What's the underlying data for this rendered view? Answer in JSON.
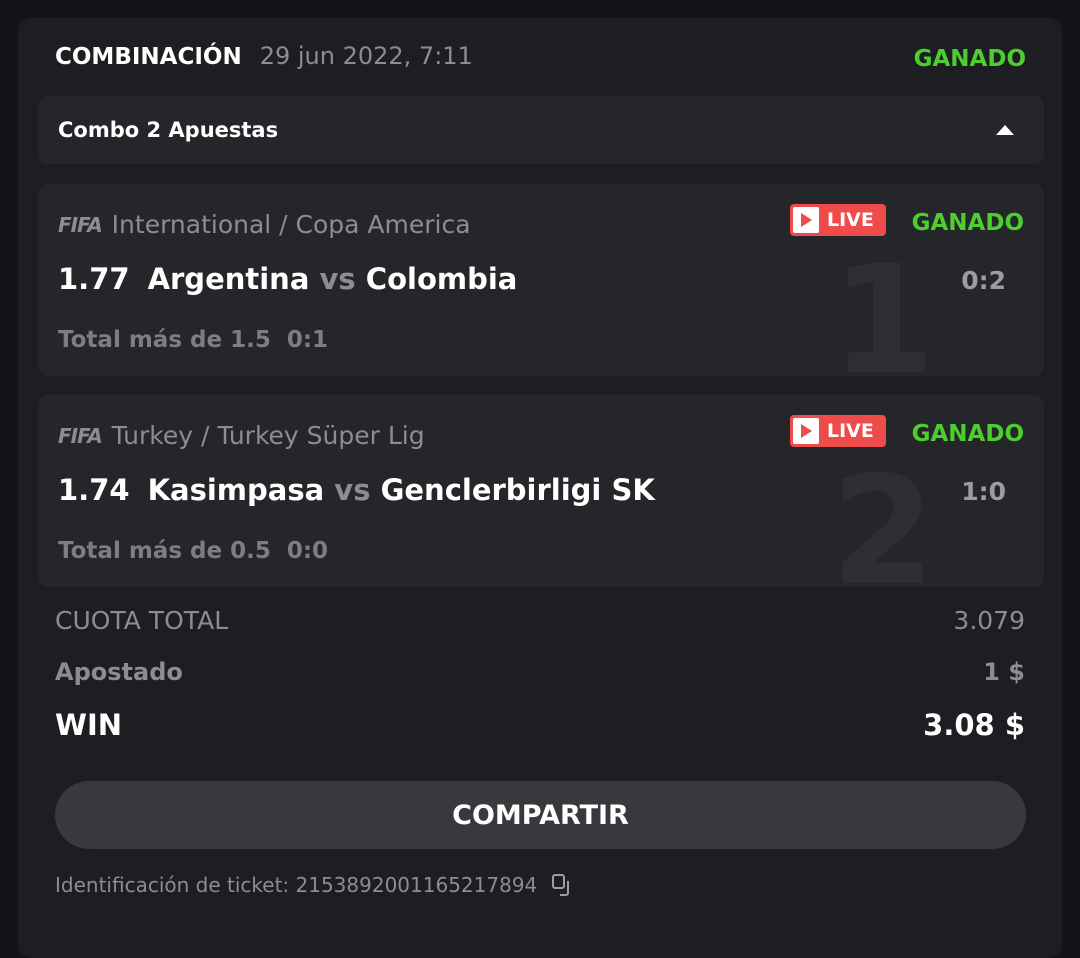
{
  "header": {
    "title": "COMBINACIÓN",
    "date": "29 jun 2022, 7:11",
    "status": "GANADO"
  },
  "combo": {
    "label": "Combo 2 Apuestas",
    "icon": "caret-up-icon"
  },
  "bets": [
    {
      "index": "1",
      "sport_logo": "FIFA",
      "league": "International / Copa America",
      "live": "LIVE",
      "status": "GANADO",
      "odd": "1.77",
      "home": "Argentina",
      "vs": "vs",
      "away": "Colombia",
      "score": "0:2",
      "market": "Total más de 1.5",
      "market_score": "0:1"
    },
    {
      "index": "2",
      "sport_logo": "FIFA",
      "league": "Turkey / Turkey Süper Lig",
      "live": "LIVE",
      "status": "GANADO",
      "odd": "1.74",
      "home": "Kasimpasa",
      "vs": "vs",
      "away": "Genclerbirligi SK",
      "score": "1:0",
      "market": "Total más de 0.5",
      "market_score": "0:0"
    }
  ],
  "summary": {
    "total_odds_label": "CUOTA TOTAL",
    "total_odds": "3.079",
    "stake_label": "Apostado",
    "stake": "1 $",
    "win_label": "WIN",
    "win": "3.08 $"
  },
  "share_label": "COMPARTIR",
  "ticket": {
    "text": "Identificación de ticket: 2153892001165217894"
  },
  "colors": {
    "win": "#4ccf2e",
    "live": "#ee4b4b"
  }
}
